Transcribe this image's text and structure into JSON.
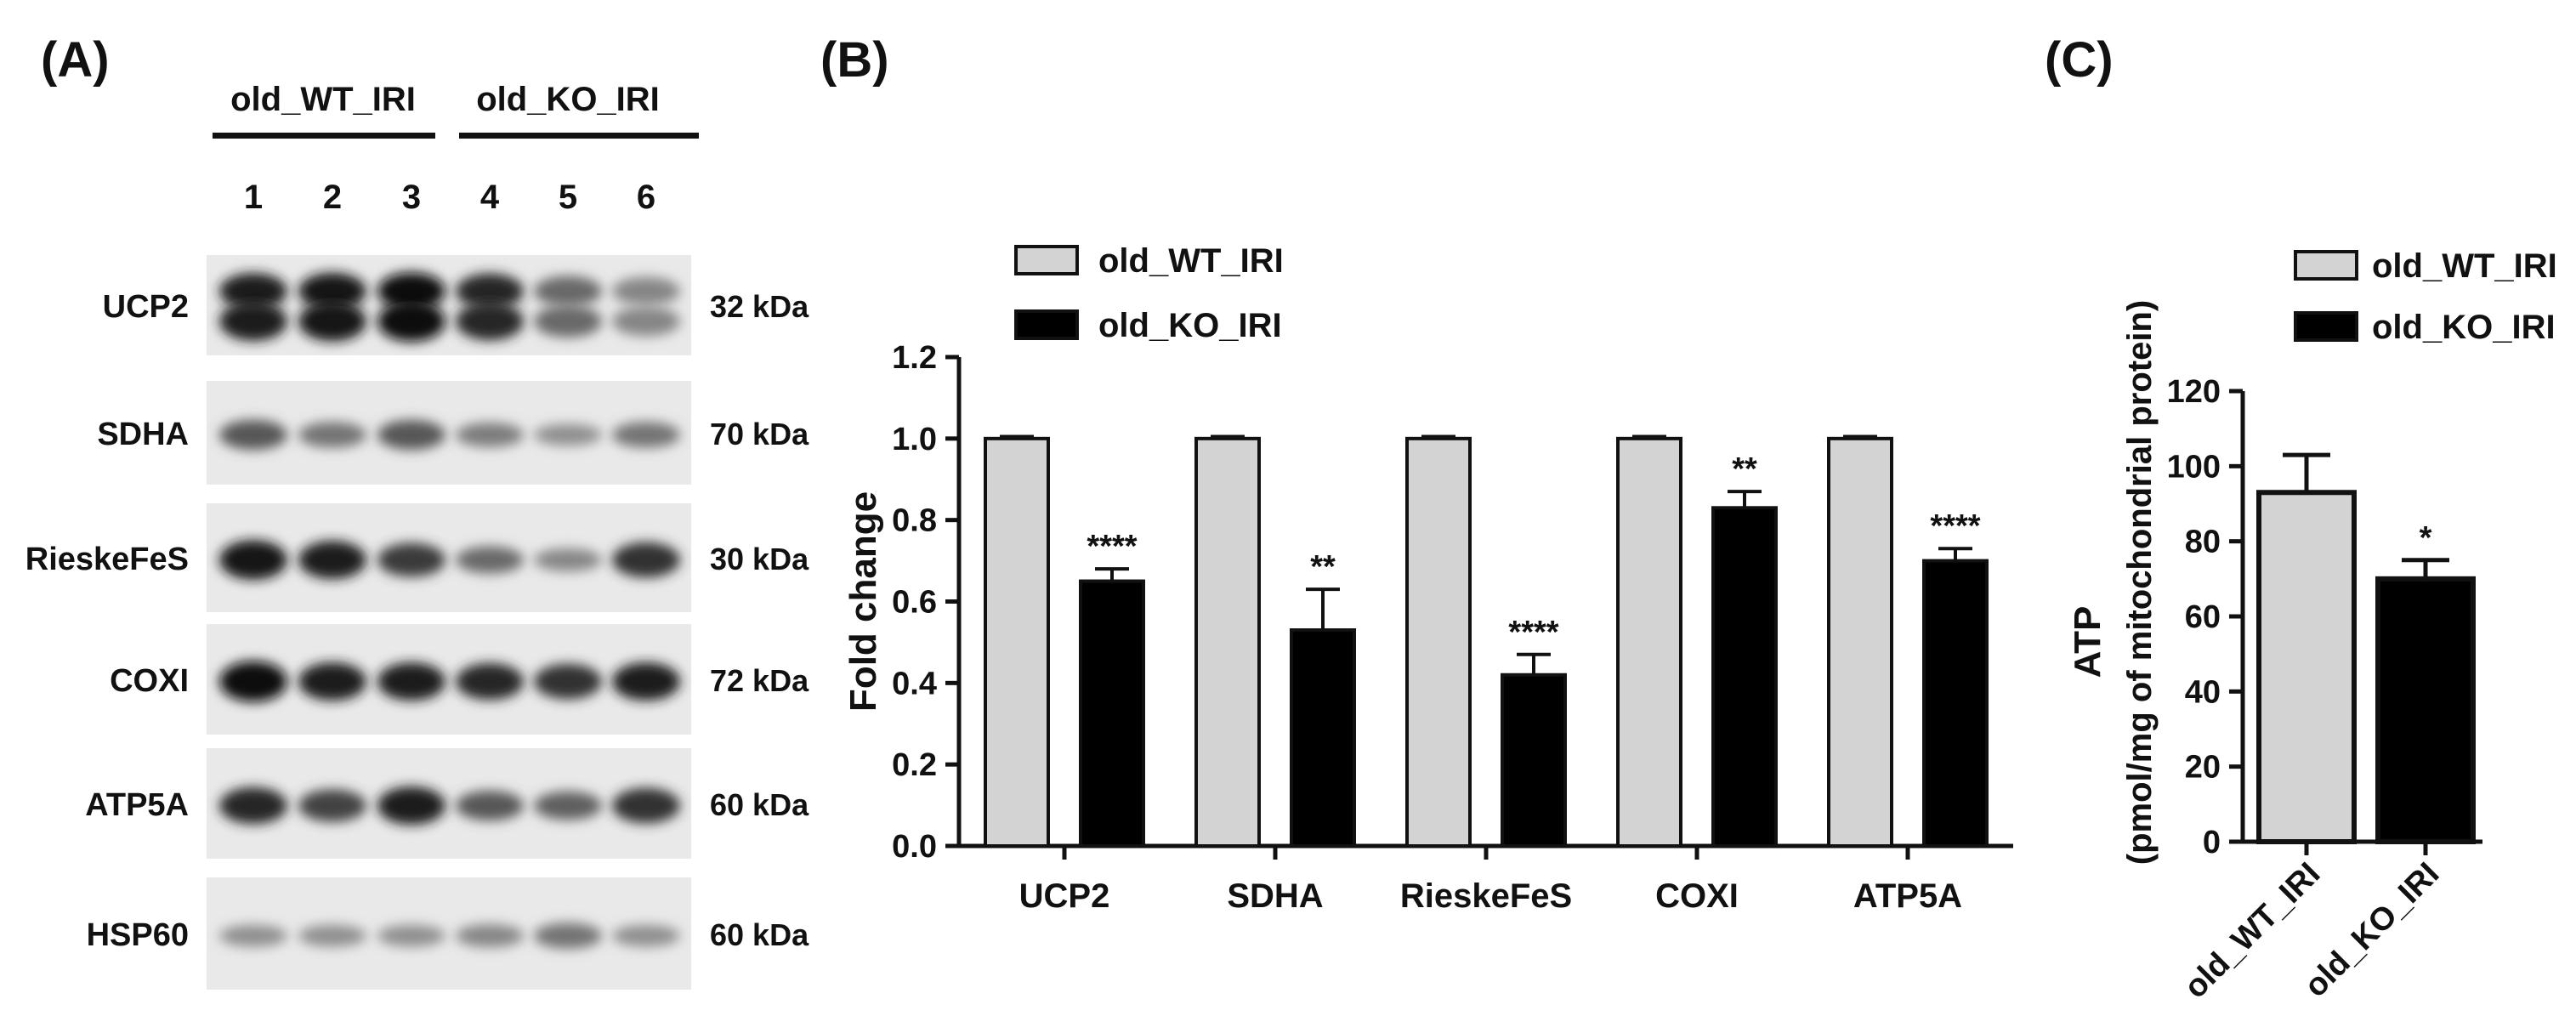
{
  "panel_a": {
    "label": "(A)",
    "groups": [
      "old_WT_IRI",
      "old_KO_IRI"
    ],
    "lanes": [
      "1",
      "2",
      "3",
      "4",
      "5",
      "6"
    ],
    "blots": [
      {
        "protein": "UCP2",
        "size": "32 kDa",
        "bands": [
          0.9,
          0.95,
          1.0,
          0.85,
          0.5,
          0.35
        ],
        "double": true
      },
      {
        "protein": "SDHA",
        "size": "70 kDa",
        "bands": [
          0.6,
          0.45,
          0.6,
          0.4,
          0.3,
          0.45
        ],
        "double": false
      },
      {
        "protein": "RieskeFeS",
        "size": "30 kDa",
        "bands": [
          0.95,
          0.9,
          0.75,
          0.5,
          0.35,
          0.8
        ],
        "double": false
      },
      {
        "protein": "COXI",
        "size": "72 kDa",
        "bands": [
          1.0,
          0.9,
          0.9,
          0.85,
          0.8,
          0.9
        ],
        "double": false
      },
      {
        "protein": "ATP5A",
        "size": "60 kDa",
        "bands": [
          0.85,
          0.7,
          0.9,
          0.6,
          0.55,
          0.8
        ],
        "double": false
      },
      {
        "protein": "HSP60",
        "size": "60 kDa",
        "bands": [
          0.3,
          0.3,
          0.3,
          0.35,
          0.45,
          0.3
        ],
        "double": false
      }
    ]
  },
  "panel_b": {
    "label": "(B)"
  },
  "panel_c": {
    "label": "(C)"
  },
  "chart_data": [
    {
      "type": "bar",
      "title": "",
      "xlabel": "",
      "ylabel": "Fold change",
      "ylim": [
        0,
        1.2
      ],
      "yticks": [
        "0.0",
        "0.2",
        "0.4",
        "0.6",
        "0.8",
        "1.0",
        "1.2"
      ],
      "categories": [
        "UCP2",
        "SDHA",
        "RieskeFeS",
        "COXI",
        "ATP5A"
      ],
      "series": [
        {
          "name": "old_WT_IRI",
          "color": "#d3d3d3",
          "values": [
            1.0,
            1.0,
            1.0,
            1.0,
            1.0
          ],
          "errors": [
            0.005,
            0.005,
            0.005,
            0.005,
            0.005
          ],
          "significance": [
            "",
            "",
            "",
            "",
            ""
          ]
        },
        {
          "name": "old_KO_IRI",
          "color": "#000000",
          "values": [
            0.65,
            0.53,
            0.42,
            0.83,
            0.7
          ],
          "errors": [
            0.03,
            0.1,
            0.05,
            0.04,
            0.03
          ],
          "significance": [
            "****",
            "**",
            "****",
            "**",
            "****"
          ]
        }
      ],
      "legend": "top-left"
    },
    {
      "type": "bar",
      "title": "",
      "xlabel": "",
      "ylabel": "ATP",
      "ylabel_sub": "(pmol/mg of mitochondrial protein)",
      "ylim": [
        0,
        120
      ],
      "yticks": [
        "0",
        "20",
        "40",
        "60",
        "80",
        "100",
        "120"
      ],
      "categories": [
        "old_WT_IRI",
        "old_KO_IRI"
      ],
      "values": [
        93,
        70
      ],
      "errors": [
        10,
        5
      ],
      "colors": [
        "#d3d3d3",
        "#000000"
      ],
      "significance": [
        "",
        "*"
      ],
      "series_names": [
        "old_WT_IRI",
        "old_KO_IRI"
      ],
      "legend": "top-right"
    }
  ]
}
